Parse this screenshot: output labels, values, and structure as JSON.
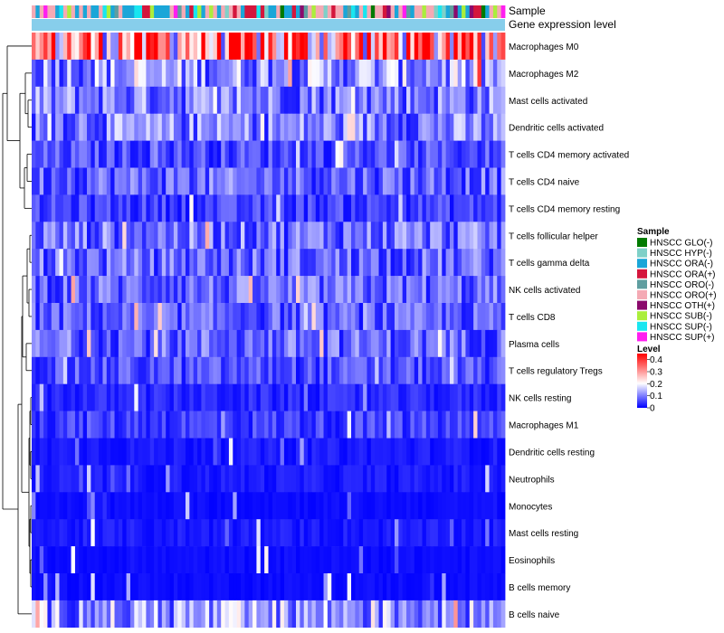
{
  "chart_data": {
    "type": "heatmap",
    "title": "",
    "annotation_tracks": [
      "Sample",
      "Gene expression level"
    ],
    "rows": [
      "Macrophages M0",
      "Macrophages M2",
      "Mast cells activated",
      "Dendritic cells activated",
      "T cells CD4 memory activated",
      "T cells CD4 naive",
      "T cells CD4 memory resting",
      "T cells follicular helper",
      "T cells gamma delta",
      "NK cells activated",
      "T cells CD8",
      "Plasma cells",
      "T cells regulatory  Tregs",
      "NK cells resting",
      "Macrophages M1",
      "Dendritic cells resting",
      "Neutrophils",
      "Monocytes",
      "Mast cells resting",
      "Eosinophils",
      "B cells memory",
      "B cells naive"
    ],
    "row_mean_levels": [
      0.3,
      0.12,
      0.1,
      0.1,
      0.06,
      0.08,
      0.05,
      0.09,
      0.08,
      0.08,
      0.07,
      0.08,
      0.06,
      0.03,
      0.05,
      0.02,
      0.02,
      0.01,
      0.02,
      0.01,
      0.01,
      0.12
    ],
    "column_count": 120,
    "legend_sample": {
      "title": "Sample",
      "items": [
        {
          "label": "HNSCC GLO(-)",
          "color": "#007a00"
        },
        {
          "label": "HNSCC HYP(-)",
          "color": "#7fd0c8"
        },
        {
          "label": "HNSCC ORA(-)",
          "color": "#1aa6d8"
        },
        {
          "label": "HNSCC ORA(+)",
          "color": "#d4163c"
        },
        {
          "label": "HNSCC ORO(-)",
          "color": "#5f9ea0"
        },
        {
          "label": "HNSCC ORO(+)",
          "color": "#f4aab4"
        },
        {
          "label": "HNSCC OTH(+)",
          "color": "#8b0a6c"
        },
        {
          "label": "HNSCC SUB(-)",
          "color": "#aaee3c"
        },
        {
          "label": "HNSCC SUP(-)",
          "color": "#19e6f0"
        },
        {
          "label": "HNSCC SUP(+)",
          "color": "#ff1ef0"
        }
      ]
    },
    "legend_level": {
      "title": "Level",
      "ticks": [
        "0.4",
        "0.3",
        "0.2",
        "0.1",
        "0"
      ],
      "range": [
        0,
        0.45
      ]
    },
    "gene_expression_color": "#87ceeb",
    "color_scale": {
      "low": "#0000ff",
      "mid": "#ffffff",
      "high": "#ff0000"
    }
  }
}
